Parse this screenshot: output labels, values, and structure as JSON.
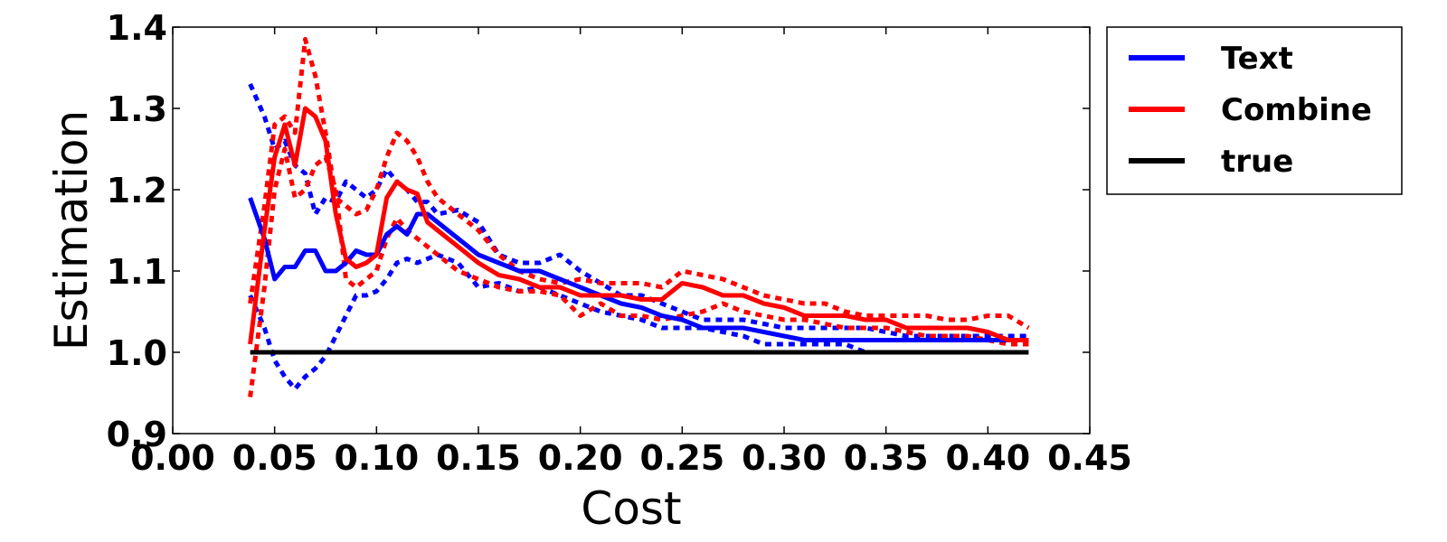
{
  "chart_data": {
    "type": "line",
    "title": "",
    "xlabel": "Cost",
    "ylabel": "Estimation",
    "xlim": [
      0.0,
      0.45
    ],
    "ylim": [
      0.9,
      1.4
    ],
    "xticks": [
      "0.00",
      "0.05",
      "0.10",
      "0.15",
      "0.20",
      "0.25",
      "0.30",
      "0.35",
      "0.40",
      "0.45"
    ],
    "yticks": [
      "0.9",
      "1.0",
      "1.1",
      "1.2",
      "1.3",
      "1.4"
    ],
    "grid": false,
    "legend_position": "outside-top-right",
    "legend": [
      {
        "label": "Text",
        "color": "#0000ff"
      },
      {
        "label": "Combine",
        "color": "#ff0000"
      },
      {
        "label": "true",
        "color": "#000000"
      }
    ],
    "series": [
      {
        "name": "Text",
        "color": "#0000ff",
        "style": "solid",
        "x": [
          0.038,
          0.045,
          0.05,
          0.055,
          0.06,
          0.065,
          0.07,
          0.075,
          0.08,
          0.085,
          0.09,
          0.095,
          0.1,
          0.105,
          0.11,
          0.115,
          0.12,
          0.125,
          0.13,
          0.14,
          0.15,
          0.16,
          0.17,
          0.18,
          0.19,
          0.2,
          0.21,
          0.22,
          0.23,
          0.24,
          0.25,
          0.26,
          0.27,
          0.28,
          0.29,
          0.3,
          0.31,
          0.32,
          0.33,
          0.34,
          0.35,
          0.36,
          0.37,
          0.38,
          0.39,
          0.4,
          0.41,
          0.42
        ],
        "y": [
          1.19,
          1.14,
          1.09,
          1.105,
          1.105,
          1.125,
          1.125,
          1.1,
          1.1,
          1.11,
          1.125,
          1.12,
          1.12,
          1.145,
          1.155,
          1.145,
          1.17,
          1.17,
          1.16,
          1.14,
          1.12,
          1.11,
          1.1,
          1.1,
          1.09,
          1.08,
          1.07,
          1.06,
          1.055,
          1.045,
          1.04,
          1.03,
          1.03,
          1.03,
          1.025,
          1.02,
          1.015,
          1.015,
          1.015,
          1.015,
          1.015,
          1.015,
          1.015,
          1.015,
          1.015,
          1.015,
          1.015,
          1.015
        ]
      },
      {
        "name": "Text upper",
        "color": "#0000ff",
        "style": "dashed",
        "x": [
          0.038,
          0.045,
          0.05,
          0.055,
          0.06,
          0.065,
          0.07,
          0.075,
          0.08,
          0.085,
          0.09,
          0.095,
          0.1,
          0.105,
          0.11,
          0.115,
          0.12,
          0.125,
          0.13,
          0.14,
          0.15,
          0.16,
          0.17,
          0.18,
          0.19,
          0.2,
          0.21,
          0.22,
          0.23,
          0.24,
          0.25,
          0.26,
          0.27,
          0.28,
          0.29,
          0.3,
          0.31,
          0.32,
          0.33,
          0.34,
          0.35,
          0.36,
          0.37,
          0.38,
          0.39,
          0.4,
          0.41,
          0.42
        ],
        "y": [
          1.33,
          1.29,
          1.25,
          1.26,
          1.23,
          1.22,
          1.17,
          1.19,
          1.185,
          1.21,
          1.2,
          1.19,
          1.2,
          1.225,
          1.21,
          1.2,
          1.185,
          1.185,
          1.17,
          1.175,
          1.16,
          1.12,
          1.11,
          1.11,
          1.12,
          1.1,
          1.085,
          1.07,
          1.07,
          1.06,
          1.05,
          1.04,
          1.04,
          1.04,
          1.035,
          1.03,
          1.03,
          1.03,
          1.03,
          1.03,
          1.025,
          1.02,
          1.02,
          1.02,
          1.02,
          1.02,
          1.02,
          1.02
        ]
      },
      {
        "name": "Text lower",
        "color": "#0000ff",
        "style": "dashed",
        "x": [
          0.038,
          0.045,
          0.05,
          0.055,
          0.06,
          0.065,
          0.07,
          0.075,
          0.08,
          0.085,
          0.09,
          0.095,
          0.1,
          0.105,
          0.11,
          0.115,
          0.12,
          0.125,
          0.13,
          0.14,
          0.15,
          0.16,
          0.17,
          0.18,
          0.19,
          0.2,
          0.21,
          0.22,
          0.23,
          0.24,
          0.25,
          0.26,
          0.27,
          0.28,
          0.29,
          0.3,
          0.31,
          0.32,
          0.33,
          0.34,
          0.35,
          0.36,
          0.37,
          0.38,
          0.39
        ],
        "y": [
          1.07,
          1.03,
          0.99,
          0.97,
          0.955,
          0.97,
          0.98,
          0.995,
          1.02,
          1.045,
          1.07,
          1.07,
          1.075,
          1.09,
          1.11,
          1.115,
          1.11,
          1.115,
          1.12,
          1.11,
          1.08,
          1.085,
          1.075,
          1.08,
          1.07,
          1.06,
          1.05,
          1.045,
          1.04,
          1.03,
          1.03,
          1.03,
          1.025,
          1.02,
          1.01,
          1.01,
          1.01,
          1.01,
          1.01,
          1.0,
          1.0,
          1.0,
          1.0,
          1.0,
          1.0
        ]
      },
      {
        "name": "Combine",
        "color": "#ff0000",
        "style": "solid",
        "x": [
          0.038,
          0.045,
          0.05,
          0.055,
          0.06,
          0.065,
          0.07,
          0.075,
          0.08,
          0.085,
          0.09,
          0.095,
          0.1,
          0.105,
          0.11,
          0.115,
          0.12,
          0.125,
          0.13,
          0.135,
          0.14,
          0.15,
          0.16,
          0.17,
          0.18,
          0.19,
          0.2,
          0.21,
          0.22,
          0.23,
          0.24,
          0.25,
          0.26,
          0.27,
          0.28,
          0.29,
          0.3,
          0.31,
          0.32,
          0.33,
          0.34,
          0.35,
          0.36,
          0.37,
          0.38,
          0.39,
          0.4,
          0.41,
          0.42
        ],
        "y": [
          1.01,
          1.15,
          1.24,
          1.28,
          1.23,
          1.3,
          1.29,
          1.26,
          1.17,
          1.115,
          1.105,
          1.11,
          1.12,
          1.19,
          1.21,
          1.2,
          1.195,
          1.16,
          1.15,
          1.14,
          1.13,
          1.11,
          1.095,
          1.09,
          1.08,
          1.08,
          1.07,
          1.07,
          1.07,
          1.065,
          1.065,
          1.085,
          1.08,
          1.07,
          1.07,
          1.06,
          1.055,
          1.045,
          1.045,
          1.045,
          1.04,
          1.04,
          1.03,
          1.03,
          1.03,
          1.03,
          1.025,
          1.015,
          1.015
        ]
      },
      {
        "name": "Combine upper",
        "color": "#ff0000",
        "style": "dashed",
        "x": [
          0.038,
          0.045,
          0.05,
          0.055,
          0.06,
          0.065,
          0.07,
          0.075,
          0.08,
          0.085,
          0.09,
          0.095,
          0.1,
          0.105,
          0.11,
          0.115,
          0.12,
          0.125,
          0.13,
          0.135,
          0.14,
          0.15,
          0.16,
          0.17,
          0.18,
          0.19,
          0.2,
          0.21,
          0.22,
          0.23,
          0.24,
          0.25,
          0.26,
          0.27,
          0.28,
          0.29,
          0.3,
          0.31,
          0.32,
          0.33,
          0.34,
          0.35,
          0.36,
          0.37,
          0.38,
          0.39,
          0.4,
          0.41,
          0.42
        ],
        "y": [
          1.06,
          1.18,
          1.28,
          1.29,
          1.27,
          1.385,
          1.34,
          1.27,
          1.19,
          1.18,
          1.17,
          1.175,
          1.2,
          1.24,
          1.27,
          1.26,
          1.24,
          1.21,
          1.19,
          1.18,
          1.17,
          1.15,
          1.12,
          1.1,
          1.09,
          1.085,
          1.09,
          1.085,
          1.085,
          1.085,
          1.08,
          1.1,
          1.095,
          1.09,
          1.08,
          1.07,
          1.065,
          1.06,
          1.06,
          1.05,
          1.045,
          1.045,
          1.045,
          1.045,
          1.04,
          1.04,
          1.045,
          1.045,
          1.03
        ]
      },
      {
        "name": "Combine lower",
        "color": "#ff0000",
        "style": "dashed",
        "x": [
          0.038,
          0.045,
          0.05,
          0.055,
          0.06,
          0.065,
          0.07,
          0.075,
          0.08,
          0.085,
          0.09,
          0.095,
          0.1,
          0.105,
          0.11,
          0.115,
          0.12,
          0.125,
          0.13,
          0.135,
          0.14,
          0.15,
          0.16,
          0.17,
          0.18,
          0.19,
          0.2,
          0.21,
          0.22,
          0.23,
          0.24,
          0.25,
          0.26,
          0.27,
          0.28,
          0.29,
          0.3,
          0.31,
          0.32,
          0.33,
          0.34,
          0.35,
          0.36,
          0.37,
          0.38,
          0.39,
          0.4,
          0.41,
          0.42
        ],
        "y": [
          0.945,
          1.08,
          1.2,
          1.25,
          1.19,
          1.2,
          1.23,
          1.24,
          1.2,
          1.09,
          1.08,
          1.09,
          1.1,
          1.14,
          1.165,
          1.15,
          1.14,
          1.13,
          1.12,
          1.11,
          1.1,
          1.09,
          1.08,
          1.075,
          1.075,
          1.07,
          1.045,
          1.06,
          1.045,
          1.045,
          1.04,
          1.045,
          1.05,
          1.06,
          1.05,
          1.045,
          1.04,
          1.04,
          1.035,
          1.03,
          1.03,
          1.03,
          1.025,
          1.02,
          1.02,
          1.02,
          1.015,
          1.01,
          1.01
        ]
      },
      {
        "name": "true",
        "color": "#000000",
        "style": "solid",
        "x": [
          0.038,
          0.42
        ],
        "y": [
          1.0,
          1.0
        ]
      }
    ]
  }
}
